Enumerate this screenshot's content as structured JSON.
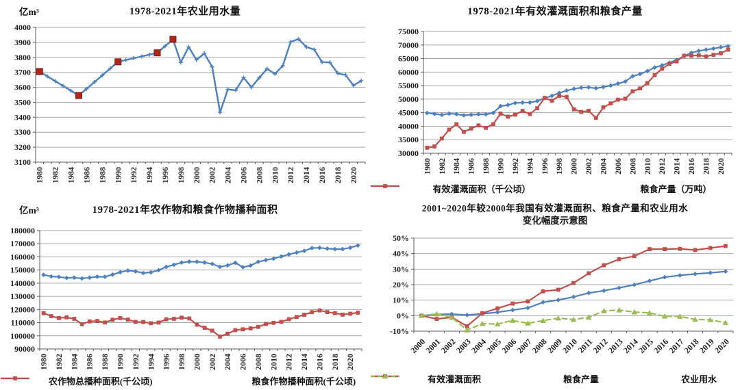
{
  "page": {
    "background": "#ffffff"
  },
  "colors": {
    "series_blue": "#4f81bd",
    "series_red": "#c0504d",
    "series_green": "#9bbb59",
    "highlight_red": "#b02618",
    "gridline": "#a6a6a6",
    "axis": "#595959",
    "text": "#1f1f1f"
  },
  "chart_data": [
    {
      "type": "line",
      "title": "1978-2021年农业用水量",
      "unit": "亿m³",
      "ylim": [
        3100,
        4000
      ],
      "ystep": 100,
      "grid": "horizontal",
      "x_label_step": 2,
      "x_label_rotation": -90,
      "legend_position": "none",
      "x": [
        1980,
        1981,
        1982,
        1983,
        1984,
        1985,
        1986,
        1987,
        1988,
        1989,
        1990,
        1991,
        1992,
        1993,
        1994,
        1995,
        1996,
        1997,
        1998,
        1999,
        2000,
        2001,
        2002,
        2003,
        2004,
        2005,
        2006,
        2007,
        2008,
        2009,
        2010,
        2011,
        2012,
        2013,
        2014,
        2015,
        2016,
        2017,
        2018,
        2019,
        2020,
        2021
      ],
      "series": [
        {
          "name": "农业用水量",
          "color": "#4f81bd",
          "marker": "plus",
          "width": 2.5,
          "values": [
            3705,
            3673,
            3641,
            3609,
            3577,
            3545,
            3590,
            3635,
            3680,
            3725,
            3770,
            3782,
            3794,
            3806,
            3818,
            3830,
            3875,
            3920,
            3766,
            3869,
            3783,
            3826,
            3736,
            3433,
            3586,
            3580,
            3664,
            3600,
            3664,
            3723,
            3689,
            3744,
            3903,
            3922,
            3869,
            3852,
            3768,
            3766,
            3693,
            3682,
            3612,
            3644
          ]
        }
      ],
      "highlight": {
        "color": "#b02618",
        "years": [
          1980,
          1985,
          1990,
          1995,
          1997
        ]
      }
    },
    {
      "type": "line",
      "title": "1978-2021年有效灌溉面积和粮食产量",
      "ylim": [
        30000,
        75000
      ],
      "ystep": 5000,
      "grid": "horizontal",
      "x_label_step": 2,
      "x_label_rotation": -90,
      "legend_position": "bottom",
      "x": [
        1980,
        1981,
        1982,
        1983,
        1984,
        1985,
        1986,
        1987,
        1988,
        1989,
        1990,
        1991,
        1992,
        1993,
        1994,
        1995,
        1996,
        1997,
        1998,
        1999,
        2000,
        2001,
        2002,
        2003,
        2004,
        2005,
        2006,
        2007,
        2008,
        2009,
        2010,
        2011,
        2012,
        2013,
        2014,
        2015,
        2016,
        2017,
        2018,
        2019,
        2020,
        2021
      ],
      "series": [
        {
          "name": "有效灌溉面积（千公顷）",
          "color": "#4f81bd",
          "marker": "diamond",
          "width": 2.2,
          "values": [
            44888,
            44574,
            44177,
            44644,
            44453,
            44036,
            44226,
            44403,
            44376,
            44917,
            47403,
            47822,
            48590,
            48728,
            48759,
            49281,
            50381,
            51239,
            52296,
            53158,
            53820,
            54249,
            54355,
            54014,
            54478,
            55029,
            55750,
            56518,
            58472,
            59261,
            60348,
            61682,
            62491,
            63473,
            64540,
            65873,
            67141,
            67816,
            68272,
            68679,
            69161,
            69561
          ]
        },
        {
          "name": "粮食产量（万吨）",
          "color": "#c0504d",
          "marker": "square",
          "width": 2.2,
          "values": [
            32056,
            32502,
            35450,
            38728,
            40731,
            37911,
            39151,
            40298,
            39408,
            40755,
            44624,
            43529,
            44266,
            45649,
            44510,
            46662,
            50454,
            49417,
            51230,
            50839,
            46218,
            45264,
            45706,
            43070,
            46947,
            48402,
            49804,
            50160,
            52871,
            53941,
            55911,
            58849,
            61223,
            63048,
            63965,
            66060,
            66044,
            66161,
            65789,
            66384,
            66949,
            68285
          ]
        }
      ]
    },
    {
      "type": "line",
      "title": "1978-2021年农作物和粮食作物播种面积",
      "unit": "亿m³",
      "ylim": [
        90000,
        180000
      ],
      "ystep": 10000,
      "grid": "horizontal",
      "x_label_step": 2,
      "x_label_rotation": -90,
      "legend_position": "bottom",
      "x": [
        1980,
        1981,
        1982,
        1983,
        1984,
        1985,
        1986,
        1987,
        1988,
        1989,
        1990,
        1991,
        1992,
        1993,
        1994,
        1995,
        1996,
        1997,
        1998,
        1999,
        2000,
        2001,
        2002,
        2003,
        2004,
        2005,
        2006,
        2007,
        2008,
        2009,
        2010,
        2011,
        2012,
        2013,
        2014,
        2015,
        2016,
        2017,
        2018,
        2019,
        2020,
        2021
      ],
      "series": [
        {
          "name": "农作物总播种面积(千公顷)",
          "color": "#4f81bd",
          "marker": "diamond",
          "width": 2.2,
          "values": [
            146380,
            145157,
            144755,
            143993,
            144221,
            143626,
            144204,
            144957,
            144869,
            146554,
            148362,
            149586,
            149007,
            147741,
            148241,
            149879,
            152381,
            153969,
            155706,
            156373,
            156300,
            155708,
            154636,
            152415,
            153553,
            155488,
            152149,
            153464,
            156266,
            157600,
            158700,
            160300,
            161900,
            163300,
            164600,
            166700,
            166900,
            166300,
            165900,
            165900,
            167000,
            168700
          ]
        },
        {
          "name": "粮食作物播种面积(千公顷)",
          "color": "#c0504d",
          "marker": "square",
          "width": 2.2,
          "values": [
            117234,
            114958,
            113462,
            114047,
            112884,
            108845,
            110933,
            111268,
            110123,
            112205,
            113466,
            112314,
            110560,
            110509,
            109544,
            110060,
            112548,
            112912,
            113787,
            113161,
            108463,
            106080,
            103891,
            99410,
            101606,
            104278,
            104958,
            105638,
            106793,
            108986,
            109876,
            110573,
            112600,
            114300,
            116000,
            118000,
            119300,
            118000,
            117200,
            116100,
            116800,
            117600
          ]
        }
      ]
    },
    {
      "type": "line",
      "title": "2001~2020年较2000年我国有效灌溉面积、粮食产量和农业用水",
      "title2": "变化幅度示意图",
      "ylim": [
        -10,
        50
      ],
      "ystep": 10,
      "y_format": "percent",
      "grid": "horizontal",
      "x_label_step": 1,
      "x_label_rotation": -45,
      "legend_position": "bottom",
      "x": [
        2000,
        2001,
        2002,
        2003,
        2004,
        2005,
        2006,
        2007,
        2008,
        2009,
        2010,
        2011,
        2012,
        2013,
        2014,
        2015,
        2016,
        2017,
        2018,
        2019,
        2020
      ],
      "series": [
        {
          "name": "有效灌溉面积",
          "color": "#4f81bd",
          "marker": "diamond",
          "width": 2.2,
          "values": [
            0,
            0.8,
            1.0,
            0.4,
            1.2,
            2.2,
            3.6,
            5.0,
            8.6,
            10.1,
            12.1,
            14.6,
            16.1,
            17.9,
            19.9,
            22.4,
            24.8,
            26.0,
            26.9,
            27.6,
            28.5
          ]
        },
        {
          "name": "粮食产量",
          "color": "#c0504d",
          "marker": "square",
          "width": 2.2,
          "values": [
            0,
            -2.1,
            -1.1,
            -6.8,
            1.6,
            4.7,
            7.8,
            9.2,
            15.7,
            16.7,
            21.0,
            27.3,
            32.5,
            36.4,
            38.4,
            42.9,
            42.9,
            43.1,
            42.3,
            43.6,
            44.9
          ]
        },
        {
          "name": "农业用水",
          "color": "#9bbb59",
          "marker": "triangle",
          "dash": true,
          "width": 2.2,
          "values": [
            0,
            1.1,
            -1.2,
            -9.3,
            -5.2,
            -5.4,
            -3.1,
            -4.9,
            -3.2,
            -1.6,
            -2.5,
            -1.1,
            3.1,
            3.6,
            2.3,
            1.8,
            -0.4,
            -0.5,
            -2.4,
            -2.7,
            -4.5
          ]
        }
      ]
    }
  ]
}
